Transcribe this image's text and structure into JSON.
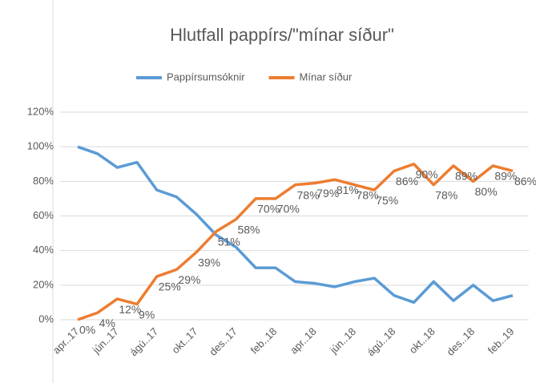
{
  "chart_data": {
    "type": "line",
    "title": "Hlutfall pappírs/\"mínar síður\"",
    "categories": [
      "apr..17",
      null,
      "jún..17",
      null,
      "ágú..17",
      null,
      "okt..17",
      null,
      "des..17",
      null,
      "feb..18",
      null,
      "apr..18",
      null,
      "jún..18",
      null,
      "ágú..18",
      null,
      "okt..18",
      null,
      "des..18",
      null,
      "feb..19"
    ],
    "series": [
      {
        "name": "Pappírsumsóknir",
        "color": "#5b9bd5",
        "values": [
          100,
          96,
          88,
          91,
          75,
          71,
          61,
          49,
          42,
          30,
          30,
          22,
          21,
          19,
          22,
          24,
          14,
          10,
          22,
          11,
          20,
          11,
          14
        ]
      },
      {
        "name": "Mínar síður",
        "color": "#ed7d31",
        "values": [
          0,
          4,
          12,
          9,
          25,
          29,
          39,
          51,
          58,
          70,
          70,
          78,
          79,
          81,
          78,
          75,
          86,
          90,
          78,
          89,
          80,
          89,
          86
        ],
        "value_labels": [
          "0%",
          "4%",
          "12%",
          "9%",
          "25%",
          "29%",
          "39%",
          "51%",
          "58%",
          "70%",
          "70%",
          "78%",
          "79%",
          "81%",
          "78%",
          "75%",
          "86%",
          "90%",
          "78%",
          "89%",
          "80%",
          "89%",
          "86%"
        ]
      }
    ],
    "ylim": [
      0,
      120
    ],
    "yticks": [
      {
        "value": 0,
        "label": "0%"
      },
      {
        "value": 20,
        "label": "20%"
      },
      {
        "value": 40,
        "label": "40%"
      },
      {
        "value": 60,
        "label": "60%"
      },
      {
        "value": 80,
        "label": "80%"
      },
      {
        "value": 100,
        "label": "100%"
      },
      {
        "value": 120,
        "label": "120%"
      }
    ],
    "grid": true,
    "legend": "top"
  }
}
